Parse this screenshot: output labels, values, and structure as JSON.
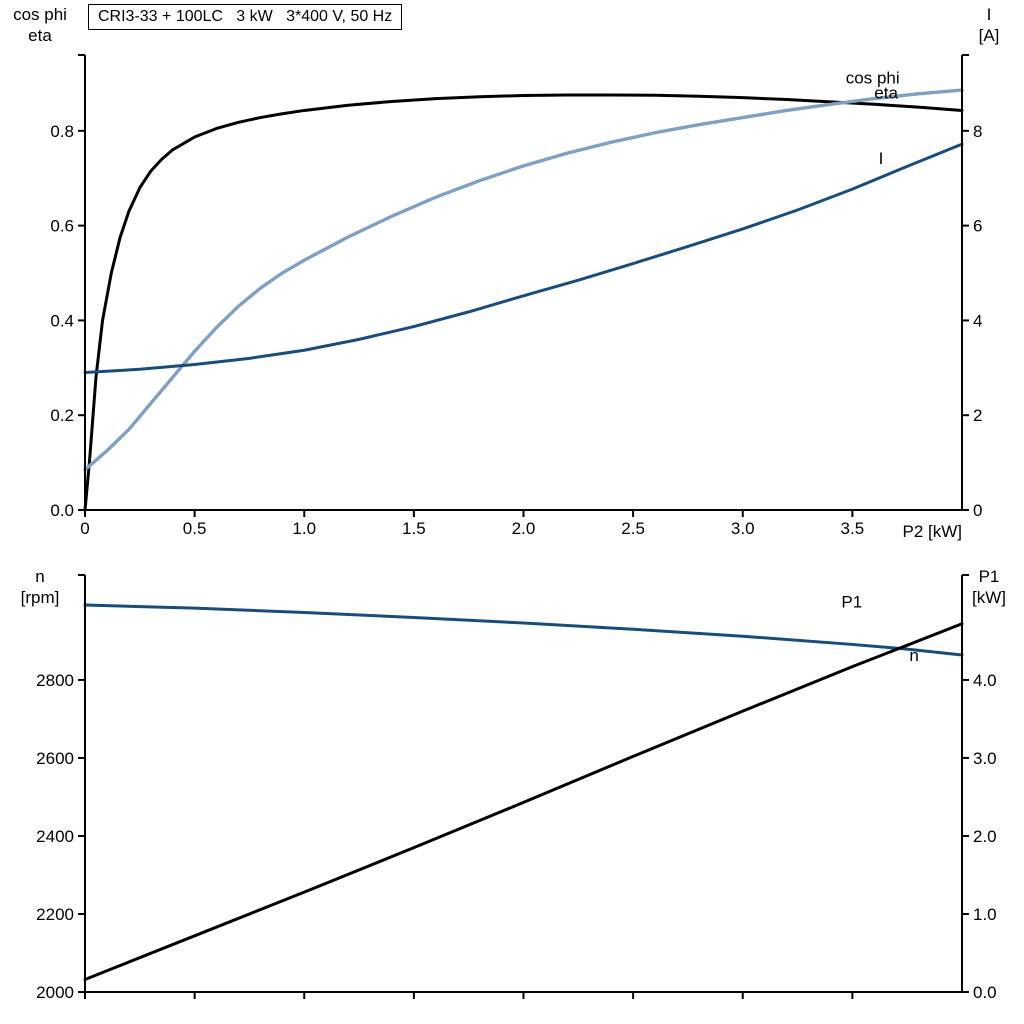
{
  "page": {
    "background": "#ffffff"
  },
  "colors": {
    "black": "#000000",
    "light_blue": "#7f9fc3",
    "dark_blue": "#174c7d"
  },
  "chart_data": [
    {
      "type": "line",
      "title": "CRI3-33 + 100LC   3 kW   3*400 V, 50 Hz",
      "xlabel": "P2 [kW]",
      "ylabel_left_lines": [
        "cos phi",
        "eta"
      ],
      "ylabel_right_lines": [
        "I",
        "[A]"
      ],
      "xlim": [
        0,
        4.0
      ],
      "xticks": [
        {
          "v": 0,
          "label": "0"
        },
        {
          "v": 0.5,
          "label": "0.5"
        },
        {
          "v": 1,
          "label": "1.0"
        },
        {
          "v": 1.5,
          "label": "1.5"
        },
        {
          "v": 2,
          "label": "2.0"
        },
        {
          "v": 2.5,
          "label": "2.5"
        },
        {
          "v": 3,
          "label": "3.0"
        },
        {
          "v": 3.5,
          "label": "3.5"
        }
      ],
      "left_axis": {
        "lim": [
          0,
          0.96
        ],
        "ticks": [
          {
            "v": 0,
            "label": "0.0"
          },
          {
            "v": 0.2,
            "label": "0.2"
          },
          {
            "v": 0.4,
            "label": "0.4"
          },
          {
            "v": 0.6,
            "label": "0.6"
          },
          {
            "v": 0.8,
            "label": "0.8"
          }
        ]
      },
      "right_axis": {
        "lim": [
          0,
          9.6
        ],
        "ticks": [
          {
            "v": 0,
            "label": "0"
          },
          {
            "v": 2,
            "label": "2"
          },
          {
            "v": 4,
            "label": "4"
          },
          {
            "v": 6,
            "label": "6"
          },
          {
            "v": 8,
            "label": "8"
          }
        ]
      },
      "series": [
        {
          "name": "eta",
          "axis": "left",
          "color": "#000000",
          "width": 3,
          "label": {
            "text": "eta",
            "at": [
              3.6,
              0.868
            ]
          },
          "points": [
            [
              0,
              0
            ],
            [
              0.02,
              0.1
            ],
            [
              0.05,
              0.28
            ],
            [
              0.08,
              0.4
            ],
            [
              0.12,
              0.5
            ],
            [
              0.16,
              0.575
            ],
            [
              0.2,
              0.63
            ],
            [
              0.25,
              0.68
            ],
            [
              0.3,
              0.715
            ],
            [
              0.35,
              0.74
            ],
            [
              0.4,
              0.76
            ],
            [
              0.5,
              0.787
            ],
            [
              0.6,
              0.805
            ],
            [
              0.7,
              0.818
            ],
            [
              0.8,
              0.828
            ],
            [
              0.9,
              0.836
            ],
            [
              1.0,
              0.843
            ],
            [
              1.2,
              0.854
            ],
            [
              1.4,
              0.862
            ],
            [
              1.6,
              0.868
            ],
            [
              1.8,
              0.872
            ],
            [
              2.0,
              0.8745
            ],
            [
              2.2,
              0.8755
            ],
            [
              2.4,
              0.8755
            ],
            [
              2.6,
              0.875
            ],
            [
              2.8,
              0.873
            ],
            [
              3.0,
              0.87
            ],
            [
              3.2,
              0.866
            ],
            [
              3.4,
              0.861
            ],
            [
              3.6,
              0.856
            ],
            [
              3.8,
              0.85
            ],
            [
              4.0,
              0.843
            ]
          ]
        },
        {
          "name": "cos phi",
          "axis": "left",
          "color": "#7f9fc3",
          "width": 3.4,
          "label": {
            "text": "cos phi",
            "at": [
              3.47,
              0.9
            ]
          },
          "points": [
            [
              0,
              0.085
            ],
            [
              0.1,
              0.125
            ],
            [
              0.2,
              0.17
            ],
            [
              0.3,
              0.225
            ],
            [
              0.4,
              0.28
            ],
            [
              0.5,
              0.335
            ],
            [
              0.6,
              0.385
            ],
            [
              0.7,
              0.43
            ],
            [
              0.8,
              0.468
            ],
            [
              0.9,
              0.5
            ],
            [
              1.0,
              0.527
            ],
            [
              1.2,
              0.576
            ],
            [
              1.4,
              0.62
            ],
            [
              1.6,
              0.66
            ],
            [
              1.8,
              0.695
            ],
            [
              2.0,
              0.726
            ],
            [
              2.2,
              0.753
            ],
            [
              2.4,
              0.776
            ],
            [
              2.6,
              0.796
            ],
            [
              2.8,
              0.813
            ],
            [
              3.0,
              0.828
            ],
            [
              3.2,
              0.843
            ],
            [
              3.4,
              0.856
            ],
            [
              3.6,
              0.868
            ],
            [
              3.8,
              0.878
            ],
            [
              4.0,
              0.886
            ]
          ]
        },
        {
          "name": "I",
          "axis": "right",
          "color": "#174c7d",
          "width": 3,
          "label": {
            "text": "I",
            "at": [
              3.62,
              7.3
            ]
          },
          "points": [
            [
              0,
              2.9
            ],
            [
              0.25,
              2.97
            ],
            [
              0.5,
              3.07
            ],
            [
              0.75,
              3.2
            ],
            [
              1.0,
              3.37
            ],
            [
              1.25,
              3.6
            ],
            [
              1.5,
              3.87
            ],
            [
              1.75,
              4.18
            ],
            [
              2.0,
              4.52
            ],
            [
              2.25,
              4.85
            ],
            [
              2.5,
              5.2
            ],
            [
              2.75,
              5.56
            ],
            [
              3.0,
              5.93
            ],
            [
              3.25,
              6.33
            ],
            [
              3.5,
              6.77
            ],
            [
              3.75,
              7.25
            ],
            [
              4.0,
              7.72
            ]
          ]
        }
      ]
    },
    {
      "type": "line",
      "title": "",
      "xlabel": "",
      "ylabel_left_lines": [
        "n",
        "[rpm]"
      ],
      "ylabel_right_lines": [
        "P1",
        "[kW]"
      ],
      "xlim": [
        0,
        4.0
      ],
      "xticks": [
        {
          "v": 0,
          "label": ""
        },
        {
          "v": 0.5,
          "label": ""
        },
        {
          "v": 1,
          "label": ""
        },
        {
          "v": 1.5,
          "label": ""
        },
        {
          "v": 2,
          "label": ""
        },
        {
          "v": 2.5,
          "label": ""
        },
        {
          "v": 3,
          "label": ""
        },
        {
          "v": 3.5,
          "label": ""
        }
      ],
      "left_axis": {
        "lim": [
          2000,
          3069
        ],
        "ticks": [
          {
            "v": 2000,
            "label": "2000"
          },
          {
            "v": 2200,
            "label": "2200"
          },
          {
            "v": 2400,
            "label": "2400"
          },
          {
            "v": 2600,
            "label": "2600"
          },
          {
            "v": 2800,
            "label": "2800"
          }
        ]
      },
      "right_axis": {
        "lim": [
          0,
          5.345
        ],
        "ticks": [
          {
            "v": 0,
            "label": "0.0"
          },
          {
            "v": 1,
            "label": "1.0"
          },
          {
            "v": 2,
            "label": "2.0"
          },
          {
            "v": 3,
            "label": "3.0"
          },
          {
            "v": 4,
            "label": "4.0"
          }
        ]
      },
      "series": [
        {
          "name": "n",
          "axis": "left",
          "color": "#174c7d",
          "width": 3,
          "label": {
            "text": "n",
            "at": [
              3.76,
              2848
            ]
          },
          "points": [
            [
              0,
              2992
            ],
            [
              0.5,
              2984
            ],
            [
              1.0,
              2973
            ],
            [
              1.5,
              2960
            ],
            [
              2.0,
              2946
            ],
            [
              2.5,
              2930
            ],
            [
              3.0,
              2912
            ],
            [
              3.5,
              2891
            ],
            [
              3.75,
              2879
            ],
            [
              4.0,
              2864
            ]
          ]
        },
        {
          "name": "P1",
          "axis": "right",
          "color": "#000000",
          "width": 3,
          "label": {
            "text": "P1",
            "at": [
              3.45,
              4.93
            ]
          },
          "points": [
            [
              0,
              0.16
            ],
            [
              0.5,
              0.72
            ],
            [
              1.0,
              1.28
            ],
            [
              1.5,
              1.85
            ],
            [
              2.0,
              2.43
            ],
            [
              2.5,
              3.02
            ],
            [
              3.0,
              3.6
            ],
            [
              3.5,
              4.17
            ],
            [
              4.0,
              4.72
            ]
          ]
        }
      ]
    }
  ]
}
